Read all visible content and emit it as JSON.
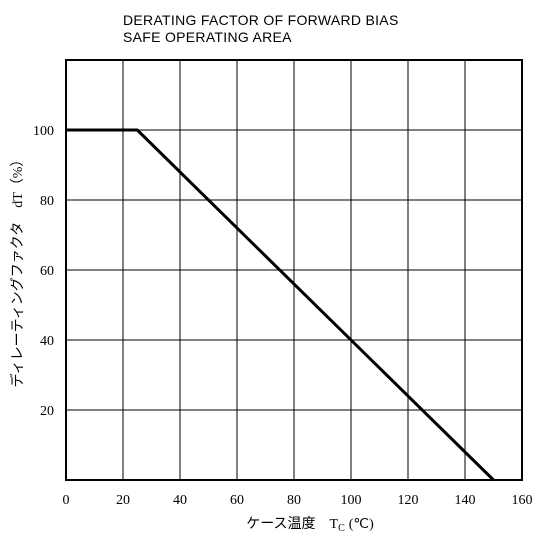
{
  "chart_data": {
    "type": "line",
    "title_lines": [
      "DERATING FACTOR OF FORWARD BIAS",
      "SAFE OPERATING AREA"
    ],
    "xlabel": "ケース温度　T",
    "xlabel_sub": "C",
    "xlabel_unit": "(℃)",
    "ylabel": "ディレーティングファクタ　dT（%）",
    "xlim": [
      0,
      160
    ],
    "ylim": [
      0,
      120
    ],
    "x_ticks": [
      0,
      20,
      40,
      60,
      80,
      100,
      120,
      140,
      160
    ],
    "y_ticks": [
      20,
      40,
      60,
      80,
      100
    ],
    "x_tick_labels": [
      "0",
      "20",
      "40",
      "60",
      "80",
      "100",
      "120",
      "140",
      "160"
    ],
    "y_tick_labels": [
      "20",
      "40",
      "60",
      "80",
      "100"
    ],
    "grid": true,
    "series": [
      {
        "x": [
          0,
          25,
          150
        ],
        "y": [
          100,
          100,
          0
        ]
      }
    ]
  }
}
